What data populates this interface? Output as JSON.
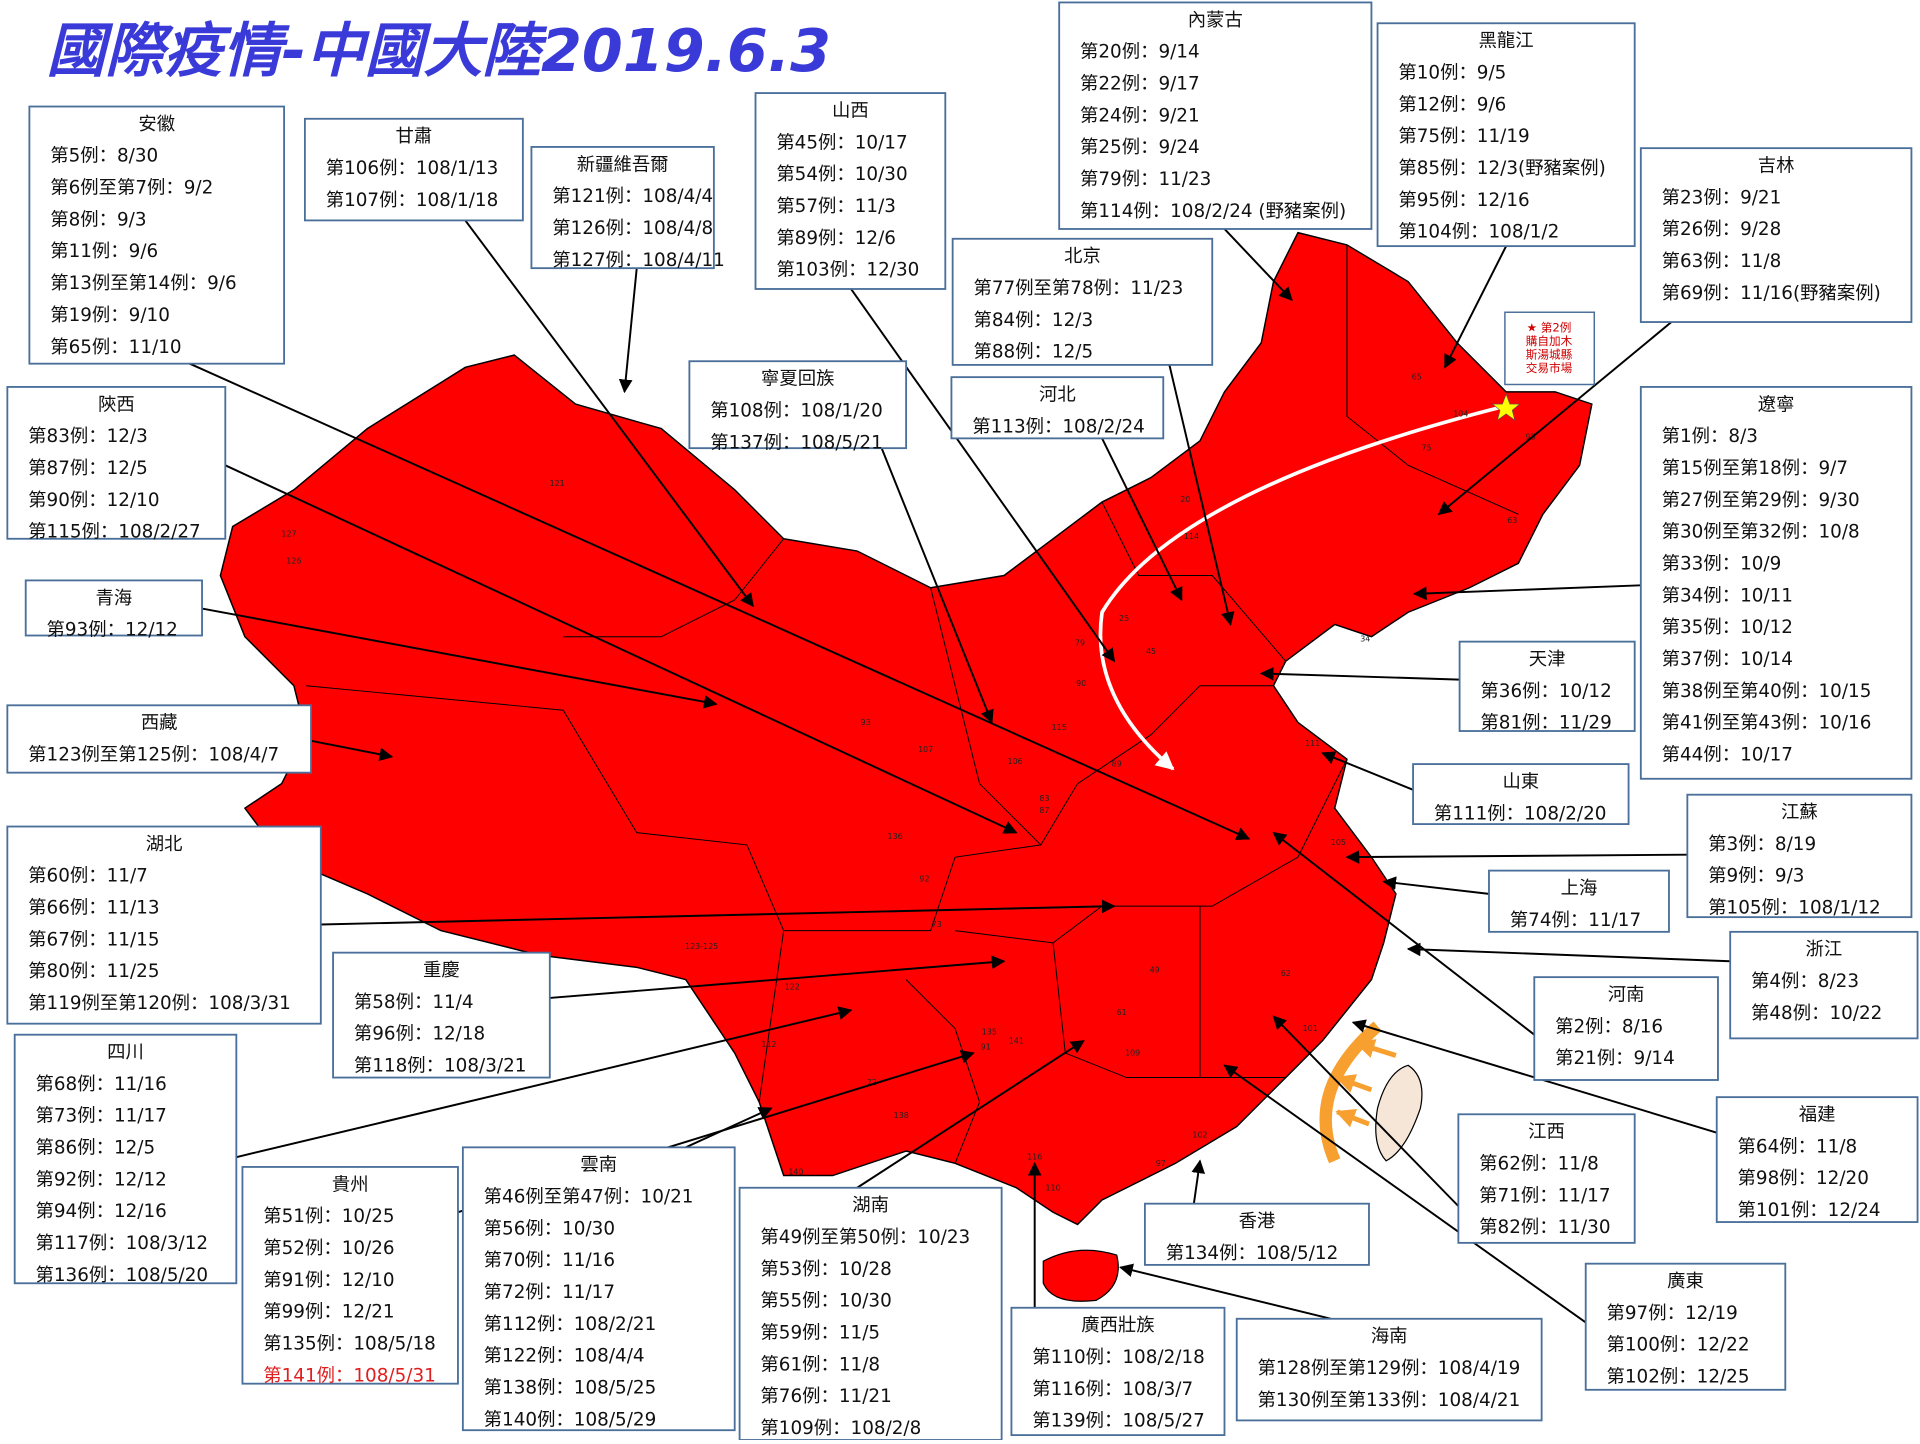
{
  "title": "國際疫情-中國大陸2019.6.3",
  "boxes": [
    {
      "name": "安徽",
      "lines": [
        "第5例：8/30",
        "第6例至第7例：9/2",
        "第8例：9/3",
        "第11例：9/6",
        "第13例至第14例：9/6",
        "第19例：9/10",
        "第65例：11/10"
      ]
    },
    {
      "name": "甘肅",
      "lines": [
        "第106例：108/1/13",
        "第107例：108/1/18"
      ]
    },
    {
      "name": "新疆維吾爾",
      "lines": [
        "第121例：108/4/4",
        "第126例：108/4/8",
        "第127例：108/4/11"
      ]
    },
    {
      "name": "山西",
      "lines": [
        "第45例：10/17",
        "第54例：10/30",
        "第57例：11/3",
        "第89例：12/6",
        "第103例：12/30"
      ]
    },
    {
      "name": "內蒙古",
      "lines": [
        "第20例：9/14",
        "第22例：9/17",
        "第24例：9/21",
        "第25例：9/24",
        "第79例：11/23",
        "第114例：108/2/24 (野豬案例)"
      ]
    },
    {
      "name": "黑龍江",
      "lines": [
        "第10例：9/5",
        "第12例：9/6",
        "第75例：11/19",
        "第85例：12/3(野豬案例)",
        "第95例：12/16",
        "第104例：108/1/2"
      ]
    },
    {
      "name": "吉林",
      "lines": [
        "第23例：9/21",
        "第26例：9/28",
        "第63例：11/8",
        "第69例：11/16(野豬案例)"
      ]
    },
    {
      "name": "北京",
      "lines": [
        "第77例至第78例：11/23",
        "第84例：12/3",
        "第88例：12/5"
      ]
    },
    {
      "name": "寧夏回族",
      "lines": [
        "第108例：108/1/20",
        "第137例：108/5/21"
      ]
    },
    {
      "name": "河北",
      "lines": [
        "第113例：108/2/24"
      ]
    },
    {
      "name": "陝西",
      "lines": [
        "第83例：12/3",
        "第87例：12/5",
        "第90例：12/10",
        "第115例：108/2/27"
      ]
    },
    {
      "name": "青海",
      "lines": [
        "第93例：12/12"
      ]
    },
    {
      "name": "西藏",
      "lines": [
        "第123例至第125例：108/4/7"
      ]
    },
    {
      "name": "湖北",
      "lines": [
        "第60例：11/7",
        "第66例：11/13",
        "第67例：11/15",
        "第80例：11/25",
        "第119例至第120例：108/3/31"
      ]
    },
    {
      "name": "重慶",
      "lines": [
        "第58例：11/4",
        "第96例：12/18",
        "第118例：108/3/21"
      ]
    },
    {
      "name": "四川",
      "lines": [
        "第68例：11/16",
        "第73例：11/17",
        "第86例：12/5",
        "第92例：12/12",
        "第94例：12/16",
        "第117例：108/3/12",
        "第136例：108/5/20"
      ]
    },
    {
      "name": "貴州",
      "lines": [
        "第51例：10/25",
        "第52例：10/26",
        "第91例：12/10",
        "第99例：12/21",
        "第135例：108/5/18",
        "第141例：108/5/31"
      ]
    },
    {
      "name": "雲南",
      "lines": [
        "第46例至第47例：10/21",
        "第56例：10/30",
        "第70例：11/16",
        "第72例：11/17",
        "第112例：108/2/21",
        "第122例：108/4/4",
        "第138例：108/5/25",
        "第140例：108/5/29"
      ]
    },
    {
      "name": "湖南",
      "lines": [
        "第49例至第50例：10/23",
        "第53例：10/28",
        "第55例：10/30",
        "第59例：11/5",
        "第61例：11/8",
        "第76例：11/21",
        "第109例：108/2/8"
      ]
    },
    {
      "name": "廣西壯族",
      "lines": [
        "第110例：108/2/18",
        "第116例：108/3/7",
        "第139例：108/5/27"
      ]
    },
    {
      "name": "香港",
      "lines": [
        "第134例：108/5/12"
      ]
    },
    {
      "name": "海南",
      "lines": [
        "第128例至第129例：108/4/19",
        "第130例至第133例：108/4/21"
      ]
    },
    {
      "name": "廣東",
      "lines": [
        "第97例：12/19",
        "第100例：12/22",
        "第102例：12/25"
      ]
    },
    {
      "name": "福建",
      "lines": [
        "第64例：11/8",
        "第98例：12/20",
        "第101例：12/24"
      ]
    },
    {
      "name": "江西",
      "lines": [
        "第62例：11/8",
        "第71例：11/17",
        "第82例：11/30"
      ]
    },
    {
      "name": "河南",
      "lines": [
        "第2例：8/16",
        "第21例：9/14"
      ]
    },
    {
      "name": "浙江",
      "lines": [
        "第4例：8/23",
        "第48例：10/22"
      ]
    },
    {
      "name": "上海",
      "lines": [
        "第74例：11/17"
      ]
    },
    {
      "name": "江蘇",
      "lines": [
        "第3例：8/19",
        "第9例：9/3",
        "第105例：108/1/12"
      ]
    },
    {
      "name": "山東",
      "lines": [
        "第111例：108/2/20"
      ]
    },
    {
      "name": "天津",
      "lines": [
        "第36例：10/12",
        "第81例：11/29"
      ]
    },
    {
      "name": "遼寧",
      "lines": [
        "第1例：8/3",
        "第15例至第18例：9/7",
        "第27例至第29例：9/30",
        "第30例至第32例：10/8",
        "第33例：10/9",
        "第34例：10/11",
        "第35例：10/12",
        "第37例：10/14",
        "第38例至第40例：10/15",
        "第41例至第43例：10/16",
        "第44例：10/17"
      ]
    }
  ],
  "note": [
    "★ 第2例",
    "購自加木",
    "斯湯城縣",
    "交易市場"
  ],
  "map_labels": [
    "121",
    "127",
    "126",
    "93",
    "123-125",
    "107",
    "106",
    "92",
    "136",
    "73",
    "122",
    "112",
    "72",
    "138",
    "140",
    "65",
    "104",
    "95",
    "75",
    "63",
    "114",
    "20",
    "79",
    "45",
    "25",
    "90",
    "115",
    "89",
    "111",
    "105",
    "62",
    "101",
    "97",
    "102",
    "116",
    "110",
    "109",
    "61",
    "49",
    "135",
    "91",
    "141",
    "34",
    "83",
    "87"
  ]
}
